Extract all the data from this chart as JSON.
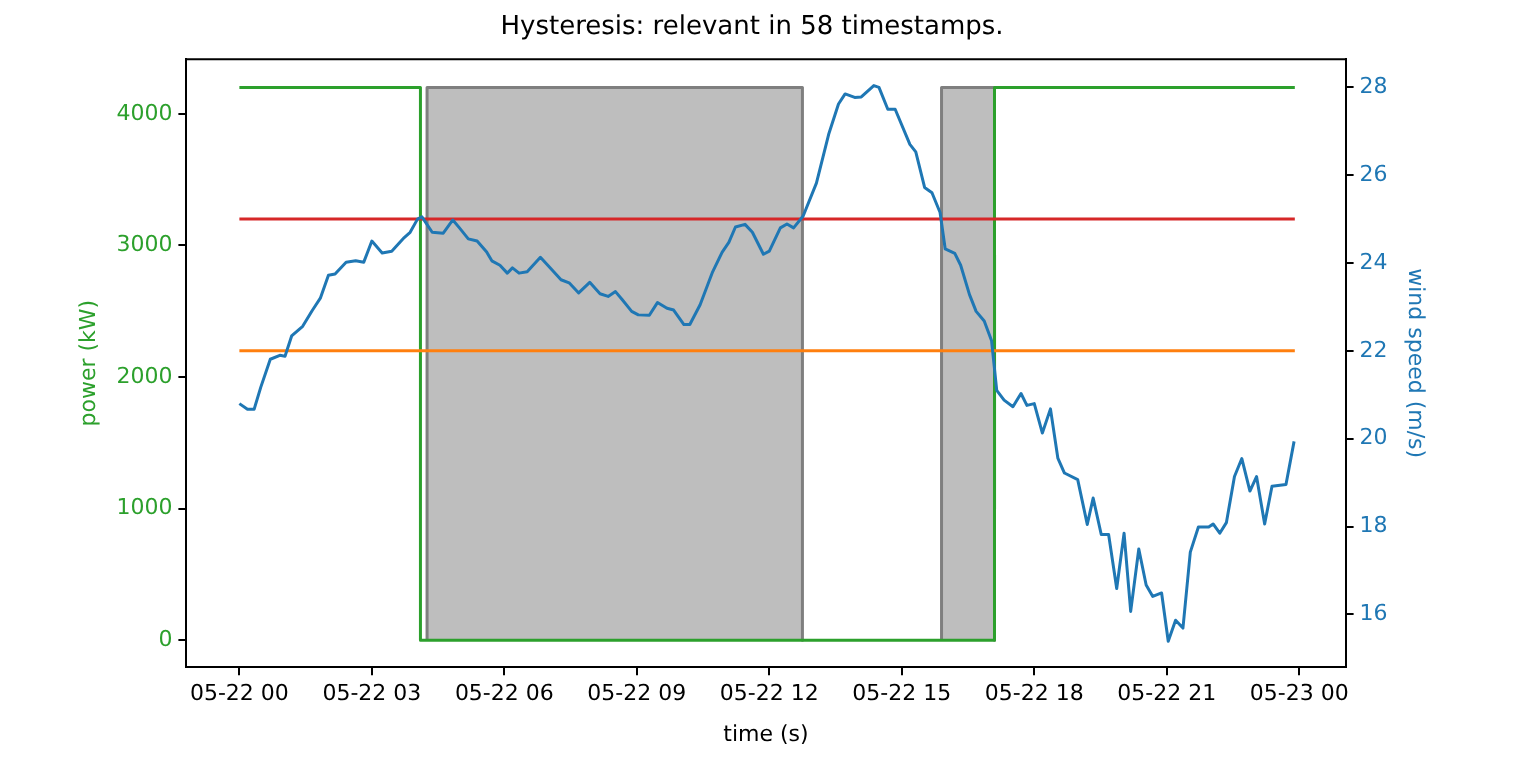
{
  "chart_data": {
    "type": "line",
    "title": "Hysteresis: relevant in 58 timestamps.",
    "xlabel": "time (s)",
    "ylabel": "power (kW)",
    "y2label": "wind speed (m/s)",
    "xlim": [
      "--05-21T22:48",
      "--05-23T01:03"
    ],
    "xticks": [
      {
        "value": "--05-22T00:00",
        "label": "05-22 00"
      },
      {
        "value": "--05-22T03:00",
        "label": "05-22 03"
      },
      {
        "value": "--05-22T06:00",
        "label": "05-22 06"
      },
      {
        "value": "--05-22T09:00",
        "label": "05-22 09"
      },
      {
        "value": "--05-22T12:00",
        "label": "05-22 12"
      },
      {
        "value": "--05-22T15:00",
        "label": "05-22 15"
      },
      {
        "value": "--05-22T18:00",
        "label": "05-22 18"
      },
      {
        "value": "--05-22T21:00",
        "label": "05-22 21"
      },
      {
        "value": "--05-23T00:00",
        "label": "05-23 00"
      }
    ],
    "ylim": [
      -205,
      4415
    ],
    "yticks": [
      0,
      1000,
      2000,
      3000,
      4000
    ],
    "y2lim": [
      14.8,
      28.64
    ],
    "y2ticks": [
      16,
      18,
      20,
      22,
      24,
      26,
      28
    ],
    "grid": false,
    "legend": false,
    "marker": "none",
    "line_style": "solid",
    "series": [
      {
        "type": "area",
        "color": "#bebebe",
        "x": [
          "--05-22T04:15",
          "--05-22T04:15",
          "--05-22T12:45",
          "--05-22T12:45"
        ],
        "values": [
          0,
          4200,
          4200,
          0
        ]
      },
      {
        "type": "area",
        "color": "#bebebe",
        "x": [
          "--05-22T15:54",
          "--05-22T15:54",
          "--05-22T17:06",
          "--05-22T17:06"
        ],
        "values": [
          0,
          4200,
          4200,
          0
        ]
      },
      {
        "color": "#2ca02c",
        "x": [
          "--05-22T00:00",
          "--05-22T04:06",
          "--05-22T04:06",
          "--05-22T17:06",
          "--05-22T17:06",
          "--05-22T23:54"
        ],
        "values": [
          4200,
          4200,
          0,
          0,
          4200,
          4200
        ]
      },
      {
        "color": "#d62728",
        "x": [
          "--05-22T00:00",
          "--05-22T23:54"
        ],
        "values": [
          3200,
          3200
        ]
      },
      {
        "color": "#ff7f0e",
        "x": [
          "--05-22T00:00",
          "--05-22T23:54"
        ],
        "values": [
          2200,
          2200
        ]
      },
      {
        "color": "#1f77b4",
        "axis": "y2",
        "x": [
          "--05-22T00:00",
          "--05-22T00:11",
          "--05-22T00:20",
          "--05-22T00:29",
          "--05-22T00:42",
          "--05-22T00:55",
          "--05-22T01:02",
          "--05-22T01:11",
          "--05-22T01:26",
          "--05-22T01:39",
          "--05-22T01:50",
          "--05-22T02:01",
          "--05-22T02:10",
          "--05-22T02:25",
          "--05-22T02:38",
          "--05-22T02:49",
          "--05-22T03:00",
          "--05-22T03:14",
          "--05-22T03:27",
          "--05-22T03:44",
          "--05-22T03:52",
          "--05-22T04:02",
          "--05-22T04:08",
          "--05-22T04:22",
          "--05-22T04:37",
          "--05-22T04:50",
          "--05-22T04:59",
          "--05-22T05:11",
          "--05-22T05:23",
          "--05-22T05:36",
          "--05-22T05:43",
          "--05-22T05:54",
          "--05-22T06:04",
          "--05-22T06:11",
          "--05-22T06:20",
          "--05-22T06:31",
          "--05-22T06:49",
          "--05-22T06:59",
          "--05-22T07:17",
          "--05-22T07:28",
          "--05-22T07:41",
          "--05-22T07:56",
          "--05-22T08:10",
          "--05-22T08:21",
          "--05-22T08:31",
          "--05-22T08:40",
          "--05-22T08:53",
          "--05-22T09:02",
          "--05-22T09:17",
          "--05-22T09:28",
          "--05-22T09:41",
          "--05-22T09:50",
          "--05-22T10:04",
          "--05-22T10:12",
          "--05-22T10:26",
          "--05-22T10:43",
          "--05-22T10:56",
          "--05-22T11:05",
          "--05-22T11:14",
          "--05-22T11:27",
          "--05-22T11:37",
          "--05-22T11:52",
          "--05-22T12:00",
          "--05-22T12:15",
          "--05-22T12:24",
          "--05-22T12:33",
          "--05-22T12:46",
          "--05-22T13:04",
          "--05-22T13:21",
          "--05-22T13:34",
          "--05-22T13:43",
          "--05-22T13:56",
          "--05-22T14:05",
          "--05-22T14:22",
          "--05-22T14:29",
          "--05-22T14:41",
          "--05-22T14:51",
          "--05-22T15:11",
          "--05-22T15:19",
          "--05-22T15:31",
          "--05-22T15:41",
          "--05-22T15:52",
          "--05-22T15:59",
          "--05-22T16:12",
          "--05-22T16:20",
          "--05-22T16:32",
          "--05-22T16:41",
          "--05-22T16:52",
          "--05-22T17:02",
          "--05-22T17:09",
          "--05-22T17:19",
          "--05-22T17:31",
          "--05-22T17:42",
          "--05-22T17:50",
          "--05-22T18:00",
          "--05-22T18:11",
          "--05-22T18:22",
          "--05-22T18:32",
          "--05-22T18:41",
          "--05-22T18:59",
          "--05-22T19:12",
          "--05-22T19:20",
          "--05-22T19:31",
          "--05-22T19:41",
          "--05-22T19:52",
          "--05-22T20:02",
          "--05-22T20:11",
          "--05-22T20:22",
          "--05-22T20:32",
          "--05-22T20:41",
          "--05-22T20:53",
          "--05-22T21:02",
          "--05-22T21:12",
          "--05-22T21:22",
          "--05-22T21:32",
          "--05-22T21:43",
          "--05-22T21:57",
          "--05-22T22:03",
          "--05-22T22:12",
          "--05-22T22:21",
          "--05-22T22:32",
          "--05-22T22:42",
          "--05-22T22:53",
          "--05-22T23:02",
          "--05-22T23:13",
          "--05-22T23:23",
          "--05-22T23:42",
          "--05-22T23:53"
        ],
        "values": [
          20.8,
          20.67,
          20.67,
          21.17,
          21.81,
          21.9,
          21.88,
          22.34,
          22.56,
          22.92,
          23.2,
          23.72,
          23.75,
          24.02,
          24.05,
          24.02,
          24.5,
          24.23,
          24.27,
          24.58,
          24.7,
          25.0,
          25.05,
          24.7,
          24.68,
          24.98,
          24.8,
          24.55,
          24.5,
          24.25,
          24.05,
          23.95,
          23.77,
          23.89,
          23.77,
          23.8,
          24.13,
          23.95,
          23.62,
          23.55,
          23.32,
          23.56,
          23.3,
          23.24,
          23.35,
          23.17,
          22.9,
          22.82,
          22.81,
          23.1,
          22.97,
          22.93,
          22.6,
          22.6,
          23.05,
          23.8,
          24.25,
          24.47,
          24.82,
          24.88,
          24.7,
          24.2,
          24.27,
          24.8,
          24.89,
          24.8,
          25.07,
          25.82,
          26.95,
          27.62,
          27.85,
          27.77,
          27.78,
          28.04,
          28.0,
          27.5,
          27.5,
          26.7,
          26.53,
          25.72,
          25.6,
          25.15,
          24.32,
          24.22,
          23.95,
          23.28,
          22.9,
          22.68,
          22.23,
          21.1,
          20.88,
          20.73,
          21.03,
          20.76,
          20.8,
          20.13,
          20.68,
          19.56,
          19.22,
          19.07,
          18.05,
          18.65,
          17.82,
          17.82,
          16.59,
          17.85,
          16.07,
          17.49,
          16.67,
          16.41,
          16.49,
          15.39,
          15.87,
          15.69,
          17.42,
          17.99,
          17.99,
          18.06,
          17.85,
          18.09,
          19.14,
          19.55,
          18.81,
          19.14,
          18.06,
          18.92,
          18.96,
          19.94
        ]
      }
    ]
  }
}
